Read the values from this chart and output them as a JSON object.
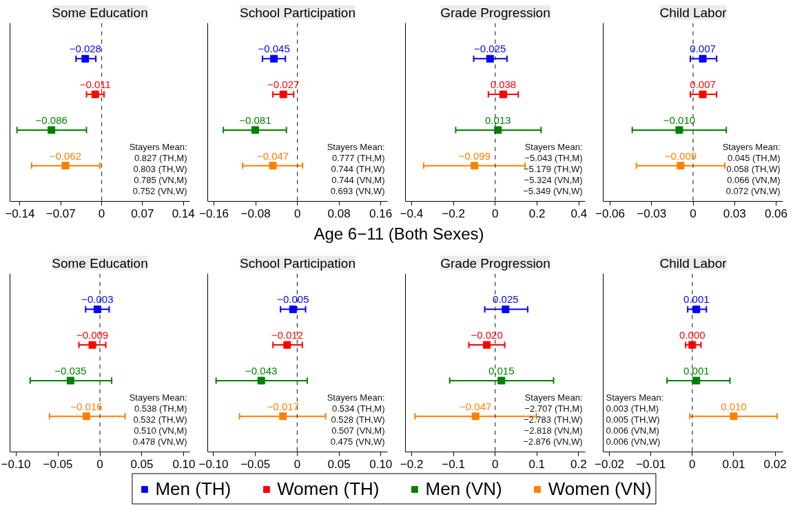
{
  "chart_data": [
    {
      "type": "scatter",
      "title": "Some Education",
      "orientation": "horizontal",
      "categories": [
        null,
        null,
        null,
        null
      ],
      "marker": "square",
      "tick_labels": "x",
      "xlim": [
        -0.157,
        0.151
      ],
      "xticks": [
        {
          "value": -0.14,
          "label": "−0.14"
        },
        {
          "value": -0.07,
          "label": "−0.07"
        },
        0,
        0.07,
        0.14
      ],
      "ref_lines": [
        {
          "axis": "x",
          "value": 0,
          "line_style": "dashed"
        }
      ],
      "annotations": [
        "Stayers Mean:",
        "0.827 (TH,M)",
        "0.803 (TH,W)",
        "0.785 (VN,M)",
        "0.752 (VN,W)"
      ],
      "series": [
        {
          "color": "#0000ff",
          "values": [
            -0.028,
            null,
            null,
            null
          ],
          "value_labels": [
            "−0.028",
            null,
            null,
            null
          ],
          "errors": [
            [
              -0.044,
              -0.01
            ],
            null,
            null,
            null
          ]
        },
        {
          "color": "#ff0000",
          "values": [
            null,
            -0.011,
            null,
            null
          ],
          "value_labels": [
            null,
            "−0.011",
            null,
            null
          ],
          "errors": [
            null,
            [
              -0.026,
              0.004
            ],
            null,
            null
          ]
        },
        {
          "color": "#008000",
          "values": [
            null,
            null,
            -0.086,
            null
          ],
          "value_labels": [
            null,
            null,
            "−0.086",
            null
          ],
          "errors": [
            null,
            null,
            [
              -0.145,
              -0.026
            ],
            null
          ]
        },
        {
          "color": "#ff7f00",
          "values": [
            null,
            null,
            null,
            -0.062
          ],
          "value_labels": [
            null,
            null,
            null,
            "−0.062"
          ],
          "errors": [
            null,
            null,
            null,
            [
              -0.12,
              -0.003
            ]
          ]
        }
      ]
    },
    {
      "type": "scatter",
      "title": "School Participation",
      "orientation": "horizontal",
      "categories": [
        null,
        null,
        null,
        null
      ],
      "marker": "square",
      "tick_labels": "x",
      "xlim": [
        -0.172,
        0.173
      ],
      "xticks": [
        {
          "value": -0.16,
          "label": "−0.16"
        },
        {
          "value": -0.08,
          "label": "−0.08"
        },
        0,
        0.08,
        0.16
      ],
      "ref_lines": [
        {
          "axis": "x",
          "value": 0,
          "line_style": "dashed"
        }
      ],
      "annotations": [
        "Stayers Mean:",
        "0.777 (TH,M)",
        "0.744 (TH,W)",
        "0.744 (VN,M)",
        "0.693 (VN,W)"
      ],
      "series": [
        {
          "color": "#0000ff",
          "values": [
            -0.045,
            null,
            null,
            null
          ],
          "value_labels": [
            "−0.045",
            null,
            null,
            null
          ],
          "errors": [
            [
              -0.067,
              -0.023
            ],
            null,
            null,
            null
          ]
        },
        {
          "color": "#ff0000",
          "values": [
            null,
            -0.027,
            null,
            null
          ],
          "value_labels": [
            null,
            "−0.027",
            null,
            null
          ],
          "errors": [
            null,
            [
              -0.047,
              -0.007
            ],
            null,
            null
          ]
        },
        {
          "color": "#008000",
          "values": [
            null,
            null,
            -0.081,
            null
          ],
          "value_labels": [
            null,
            null,
            "−0.081",
            null
          ],
          "errors": [
            null,
            null,
            [
              -0.142,
              -0.021
            ],
            null
          ]
        },
        {
          "color": "#ff7f00",
          "values": [
            null,
            null,
            null,
            -0.047
          ],
          "value_labels": [
            null,
            null,
            null,
            "−0.047"
          ],
          "errors": [
            null,
            null,
            null,
            [
              -0.105,
              0.01
            ]
          ]
        }
      ]
    },
    {
      "type": "scatter",
      "title": "Grade Progression",
      "orientation": "horizontal",
      "categories": [
        null,
        null,
        null,
        null
      ],
      "marker": "square",
      "tick_labels": "x",
      "xlim": [
        -0.429,
        0.43
      ],
      "xticks": [
        {
          "value": -0.4,
          "label": "−0.4"
        },
        {
          "value": -0.2,
          "label": "−0.2"
        },
        0,
        0.2,
        0.4
      ],
      "ref_lines": [
        {
          "axis": "x",
          "value": 0,
          "line_style": "dashed"
        }
      ],
      "annotations": [
        "Stayers Mean:",
        "−5.043 (TH,M)",
        "−5.179 (TH,W)",
        "−5.324 (VN,M)",
        "−5.349 (VN,W)"
      ],
      "series": [
        {
          "color": "#0000ff",
          "values": [
            -0.025,
            null,
            null,
            null
          ],
          "value_labels": [
            "−0.025",
            null,
            null,
            null
          ],
          "errors": [
            [
              -0.103,
              0.056
            ],
            null,
            null,
            null
          ]
        },
        {
          "color": "#ff0000",
          "values": [
            null,
            0.038,
            null,
            null
          ],
          "value_labels": [
            null,
            "0.038",
            null,
            null
          ],
          "errors": [
            null,
            [
              -0.033,
              0.11
            ],
            null,
            null
          ]
        },
        {
          "color": "#008000",
          "values": [
            null,
            null,
            0.013,
            null
          ],
          "value_labels": [
            null,
            null,
            "0.013",
            null
          ],
          "errors": [
            null,
            null,
            [
              -0.189,
              0.219
            ],
            null
          ]
        },
        {
          "color": "#ff7f00",
          "values": [
            null,
            null,
            null,
            -0.099
          ],
          "value_labels": [
            null,
            null,
            null,
            "−0.099"
          ],
          "errors": [
            null,
            null,
            null,
            [
              -0.342,
              0.143
            ]
          ]
        }
      ]
    },
    {
      "type": "scatter",
      "title": "Child Labor",
      "orientation": "horizontal",
      "categories": [
        null,
        null,
        null,
        null
      ],
      "marker": "square",
      "tick_labels": "x",
      "xlim": [
        -0.065,
        0.065
      ],
      "xticks": [
        {
          "value": -0.06,
          "label": "−0.06"
        },
        {
          "value": -0.03,
          "label": "−0.03"
        },
        0,
        0.03,
        0.06
      ],
      "ref_lines": [
        {
          "axis": "x",
          "value": 0,
          "line_style": "dashed"
        }
      ],
      "annotations": [
        "Stayers Mean:",
        "0.045 (TH,M)",
        "0.058 (TH,W)",
        "0.066 (VN,M)",
        "0.072 (VN,W)"
      ],
      "series": [
        {
          "color": "#0000ff",
          "values": [
            0.007,
            null,
            null,
            null
          ],
          "value_labels": [
            "0.007",
            null,
            null,
            null
          ],
          "errors": [
            [
              -0.002,
              0.017
            ],
            null,
            null,
            null
          ]
        },
        {
          "color": "#ff0000",
          "values": [
            null,
            0.007,
            null,
            null
          ],
          "value_labels": [
            null,
            "0.007",
            null,
            null
          ],
          "errors": [
            null,
            [
              -0.002,
              0.017
            ],
            null,
            null
          ]
        },
        {
          "color": "#008000",
          "values": [
            null,
            null,
            -0.01,
            null
          ],
          "value_labels": [
            null,
            null,
            "−0.010",
            null
          ],
          "errors": [
            null,
            null,
            [
              -0.044,
              0.024
            ],
            null
          ]
        },
        {
          "color": "#ff7f00",
          "values": [
            null,
            null,
            null,
            -0.009
          ],
          "value_labels": [
            null,
            null,
            null,
            "−0.009"
          ],
          "errors": [
            null,
            null,
            null,
            [
              -0.041,
              0.023
            ]
          ]
        }
      ]
    },
    {
      "type": "other",
      "title": "Age 6−11 (Both Sexes)"
    },
    {
      "type": "scatter",
      "title": "Some Education",
      "orientation": "horizontal",
      "categories": [
        null,
        null,
        null,
        null
      ],
      "marker": "square",
      "tick_labels": "x",
      "xlim": [
        -0.107,
        0.107
      ],
      "xticks": [
        {
          "value": -0.1,
          "label": "−0.10"
        },
        {
          "value": -0.05,
          "label": "−0.05"
        },
        0,
        {
          "value": 0.05,
          "label": "0.05"
        },
        {
          "value": 0.1,
          "label": "0.10"
        }
      ],
      "ref_lines": [
        {
          "axis": "x",
          "value": 0,
          "line_style": "dashed"
        }
      ],
      "annotations": [
        "Stayers Mean:",
        "0.538 (TH,M)",
        "0.532 (TH,W)",
        "0.510 (VN,M)",
        "0.478 (VN,W)"
      ],
      "series": [
        {
          "color": "#0000ff",
          "values": [
            -0.003,
            null,
            null,
            null
          ],
          "value_labels": [
            "−0.003",
            null,
            null,
            null
          ],
          "errors": [
            [
              -0.017,
              0.011
            ],
            null,
            null,
            null
          ]
        },
        {
          "color": "#ff0000",
          "values": [
            null,
            -0.009,
            null,
            null
          ],
          "value_labels": [
            null,
            "−0.009",
            null,
            null
          ],
          "errors": [
            null,
            [
              -0.025,
              0.007
            ],
            null,
            null
          ]
        },
        {
          "color": "#008000",
          "values": [
            null,
            null,
            -0.035,
            null
          ],
          "value_labels": [
            null,
            null,
            "−0.035",
            null
          ],
          "errors": [
            null,
            null,
            [
              -0.083,
              0.014
            ],
            null
          ]
        },
        {
          "color": "#ff7f00",
          "values": [
            null,
            null,
            null,
            -0.016
          ],
          "value_labels": [
            null,
            null,
            null,
            "−0.016"
          ],
          "errors": [
            null,
            null,
            null,
            [
              -0.06,
              0.03
            ]
          ]
        }
      ]
    },
    {
      "type": "scatter",
      "title": "School Participation",
      "orientation": "horizontal",
      "categories": [
        null,
        null,
        null,
        null
      ],
      "marker": "square",
      "tick_labels": "x",
      "xlim": [
        -0.107,
        0.108
      ],
      "xticks": [
        {
          "value": -0.1,
          "label": "−0.10"
        },
        {
          "value": -0.05,
          "label": "−0.05"
        },
        0,
        {
          "value": 0.05,
          "label": "0.05"
        },
        {
          "value": 0.1,
          "label": "0.10"
        }
      ],
      "ref_lines": [
        {
          "axis": "x",
          "value": 0,
          "line_style": "dashed"
        }
      ],
      "annotations": [
        "Stayers Mean:",
        "0.534 (TH,M)",
        "0.528 (TH,W)",
        "0.507 (VN,M)",
        "0.475 (VN,W)"
      ],
      "series": [
        {
          "color": "#0000ff",
          "values": [
            -0.005,
            null,
            null,
            null
          ],
          "value_labels": [
            "−0.005",
            null,
            null,
            null
          ],
          "errors": [
            [
              -0.02,
              0.01
            ],
            null,
            null,
            null
          ]
        },
        {
          "color": "#ff0000",
          "values": [
            null,
            -0.012,
            null,
            null
          ],
          "value_labels": [
            null,
            "−0.012",
            null,
            null
          ],
          "errors": [
            null,
            [
              -0.029,
              0.006
            ],
            null,
            null
          ]
        },
        {
          "color": "#008000",
          "values": [
            null,
            null,
            -0.043,
            null
          ],
          "value_labels": [
            null,
            null,
            "−0.043",
            null
          ],
          "errors": [
            null,
            null,
            [
              -0.097,
              0.012
            ],
            null
          ]
        },
        {
          "color": "#ff7f00",
          "values": [
            null,
            null,
            null,
            -0.017
          ],
          "value_labels": [
            null,
            null,
            null,
            "−0.017"
          ],
          "errors": [
            null,
            null,
            null,
            [
              -0.069,
              0.034
            ]
          ]
        }
      ]
    },
    {
      "type": "scatter",
      "title": "Grade Progression",
      "orientation": "horizontal",
      "categories": [
        null,
        null,
        null,
        null
      ],
      "marker": "square",
      "tick_labels": "x",
      "xlim": [
        -0.215,
        0.216
      ],
      "xticks": [
        {
          "value": -0.2,
          "label": "−0.2"
        },
        {
          "value": -0.1,
          "label": "−0.1"
        },
        0,
        0.1,
        0.2
      ],
      "ref_lines": [
        {
          "axis": "x",
          "value": 0,
          "line_style": "dashed"
        }
      ],
      "annotations": [
        "Stayers Mean:",
        "−2.707 (TH,M)",
        "−2.783 (TH,W)",
        "−2.818 (VN,M)",
        "−2.876 (VN,W)"
      ],
      "series": [
        {
          "color": "#0000ff",
          "values": [
            0.025,
            null,
            null,
            null
          ],
          "value_labels": [
            "0.025",
            null,
            null,
            null
          ],
          "errors": [
            [
              -0.025,
              0.078
            ],
            null,
            null,
            null
          ]
        },
        {
          "color": "#ff0000",
          "values": [
            null,
            -0.02,
            null,
            null
          ],
          "value_labels": [
            null,
            "−0.020",
            null,
            null
          ],
          "errors": [
            null,
            [
              -0.063,
              0.023
            ],
            null,
            null
          ]
        },
        {
          "color": "#008000",
          "values": [
            null,
            null,
            0.015,
            null
          ],
          "value_labels": [
            null,
            null,
            "0.015",
            null
          ],
          "errors": [
            null,
            null,
            [
              -0.109,
              0.14
            ],
            null
          ]
        },
        {
          "color": "#ff7f00",
          "values": [
            null,
            null,
            null,
            -0.047
          ],
          "value_labels": [
            null,
            null,
            null,
            "−0.047"
          ],
          "errors": [
            null,
            null,
            null,
            [
              -0.192,
              0.099
            ]
          ]
        }
      ]
    },
    {
      "type": "scatter",
      "title": "Child Labor",
      "orientation": "horizontal",
      "categories": [
        null,
        null,
        null,
        null
      ],
      "marker": "square",
      "tick_labels": "x",
      "legend": "bottom",
      "xlim": [
        -0.0215,
        0.0219
      ],
      "xticks": [
        {
          "value": -0.02,
          "label": "−0.02"
        },
        {
          "value": -0.01,
          "label": "−0.01"
        },
        0,
        0.01,
        0.02
      ],
      "ref_lines": [
        {
          "axis": "x",
          "value": 0,
          "line_style": "dashed"
        }
      ],
      "annotations": [
        "Stayers Mean:",
        "0.003 (TH,M)",
        "0.005 (TH,W)",
        "0.006 (VN,M)",
        "0.006 (VN,W)"
      ],
      "series": [
        {
          "name": "Men (TH)",
          "color": "#0000ff",
          "values": [
            0.001,
            null,
            null,
            null
          ],
          "value_labels": [
            "0.001",
            null,
            null,
            null
          ],
          "errors": [
            [
              -0.0011,
              0.0034
            ],
            null,
            null,
            null
          ]
        },
        {
          "name": "Women (TH)",
          "color": "#ff0000",
          "values": [
            null,
            0.0,
            null,
            null
          ],
          "value_labels": [
            null,
            "0.000",
            null,
            null
          ],
          "errors": [
            null,
            [
              -0.0016,
              0.0021
            ],
            null,
            null
          ]
        },
        {
          "name": "Men (VN)",
          "color": "#008000",
          "values": [
            null,
            null,
            0.001,
            null
          ],
          "value_labels": [
            null,
            null,
            "0.001",
            null
          ],
          "errors": [
            null,
            null,
            [
              -0.0061,
              0.0091
            ],
            null
          ]
        },
        {
          "name": "Women (VN)",
          "color": "#ff7f00",
          "values": [
            null,
            null,
            null,
            0.01
          ],
          "value_labels": [
            null,
            null,
            null,
            "0.010"
          ],
          "errors": [
            null,
            null,
            null,
            [
              -0.0006,
              0.0205
            ]
          ]
        }
      ]
    }
  ]
}
